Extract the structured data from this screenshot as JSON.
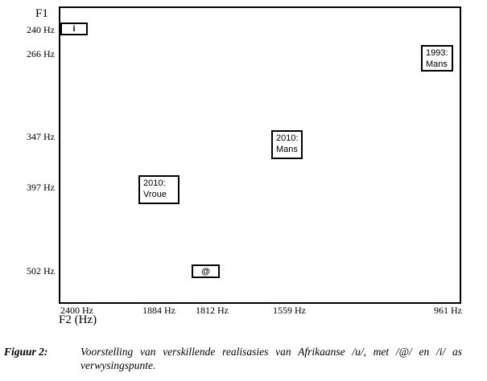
{
  "chart_data": {
    "type": "scatter",
    "title": "",
    "xlabel": "F2 (Hz)",
    "ylabel": "F1",
    "grid": false,
    "x_axis_direction": "decreasing",
    "y_axis_direction": "increasing-downward",
    "x_ticks": [
      "2400 Hz",
      "1884 Hz",
      "1812 Hz",
      "1559 Hz",
      "961 Hz"
    ],
    "y_ticks": [
      "240 Hz",
      "266 Hz",
      "347 Hz",
      "397 Hz",
      "502 Hz"
    ],
    "points": [
      {
        "label": "i",
        "f1_hz": 240,
        "f2_hz": 2400
      },
      {
        "label": "1993:\nMans",
        "f1_hz": 266,
        "f2_hz": 961
      },
      {
        "label": "2010:\nMans",
        "f1_hz": 347,
        "f2_hz": 1559
      },
      {
        "label": "2010:\nVroue",
        "f1_hz": 397,
        "f2_hz": 1884
      },
      {
        "label": "@",
        "f1_hz": 502,
        "f2_hz": 1812
      }
    ]
  },
  "caption": {
    "label": "Figuur 2:",
    "text": "Voorstelling van verskillende realisasies van Afrikaanse /u/, met /@/ en /i/ as verwysingspunte."
  },
  "colors": {
    "foreground": "#000000",
    "background": "#ffffff"
  }
}
